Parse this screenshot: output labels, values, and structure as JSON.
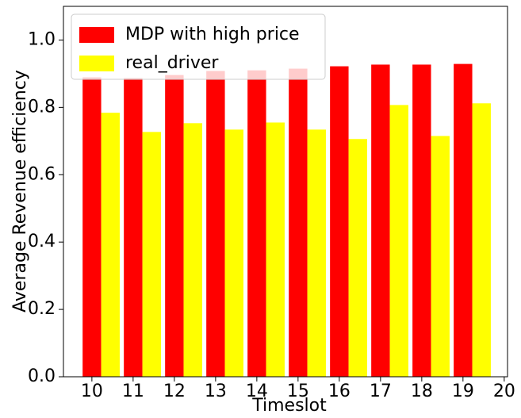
{
  "chart_data": {
    "type": "bar",
    "x": [
      10,
      11,
      12,
      13,
      14,
      15,
      16,
      17,
      18,
      19
    ],
    "series": [
      {
        "name": "MDP with high price",
        "color": "#ff0000",
        "values": [
          0.889,
          0.887,
          0.896,
          0.908,
          0.91,
          0.915,
          0.922,
          0.927,
          0.927,
          0.929
        ]
      },
      {
        "name": "real_driver",
        "color": "#ffff00",
        "values": [
          0.784,
          0.727,
          0.753,
          0.734,
          0.755,
          0.734,
          0.706,
          0.807,
          0.715,
          0.812
        ]
      }
    ],
    "xlabel": "Timeslot",
    "ylabel": "Average Revenue efficiency",
    "xlim": [
      9.31,
      20.08
    ],
    "xticks": [
      10,
      11,
      12,
      13,
      14,
      15,
      16,
      17,
      18,
      19,
      20
    ],
    "ylim": [
      0,
      1.1
    ],
    "yticks": [
      {
        "value": 0,
        "label": "0.0"
      },
      0.2,
      0.4,
      0.6,
      0.8,
      {
        "value": 1,
        "label": "1.0"
      }
    ],
    "legend": "upper left",
    "grid": false
  }
}
